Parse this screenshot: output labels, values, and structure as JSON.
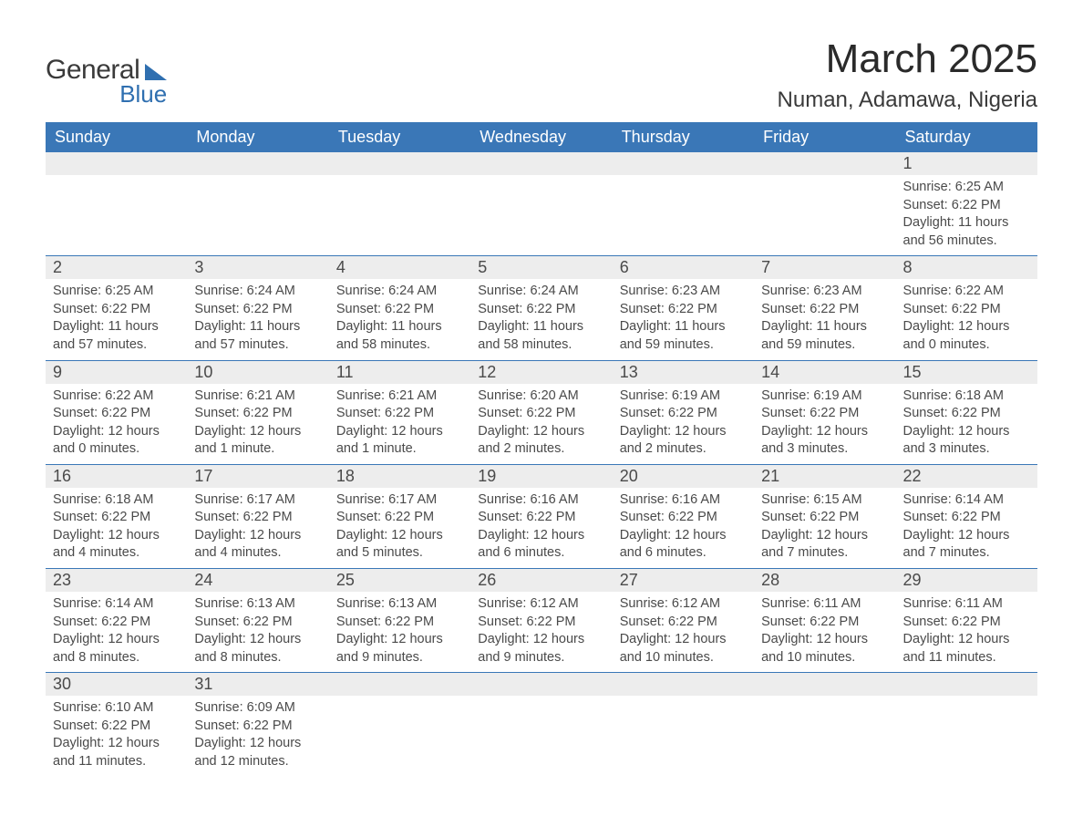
{
  "logo": {
    "word1": "General",
    "word2": "Blue"
  },
  "title": "March 2025",
  "location": "Numan, Adamawa, Nigeria",
  "colors": {
    "header_bg": "#3a77b7",
    "header_text": "#ffffff",
    "daynum_bg": "#ededed",
    "row_divider": "#3a77b7",
    "body_text": "#4a4a4a",
    "logo_accent": "#2f6fb0",
    "page_bg": "#ffffff"
  },
  "typography": {
    "title_size_pt": 33,
    "location_size_pt": 18,
    "header_size_pt": 14,
    "daynum_size_pt": 14,
    "detail_size_pt": 11
  },
  "weekdays": [
    "Sunday",
    "Monday",
    "Tuesday",
    "Wednesday",
    "Thursday",
    "Friday",
    "Saturday"
  ],
  "labels": {
    "sunrise": "Sunrise:",
    "sunset": "Sunset:",
    "daylight": "Daylight:"
  },
  "weeks": [
    [
      null,
      null,
      null,
      null,
      null,
      null,
      {
        "n": "1",
        "sunrise": "6:25 AM",
        "sunset": "6:22 PM",
        "daylight": "11 hours and 56 minutes."
      }
    ],
    [
      {
        "n": "2",
        "sunrise": "6:25 AM",
        "sunset": "6:22 PM",
        "daylight": "11 hours and 57 minutes."
      },
      {
        "n": "3",
        "sunrise": "6:24 AM",
        "sunset": "6:22 PM",
        "daylight": "11 hours and 57 minutes."
      },
      {
        "n": "4",
        "sunrise": "6:24 AM",
        "sunset": "6:22 PM",
        "daylight": "11 hours and 58 minutes."
      },
      {
        "n": "5",
        "sunrise": "6:24 AM",
        "sunset": "6:22 PM",
        "daylight": "11 hours and 58 minutes."
      },
      {
        "n": "6",
        "sunrise": "6:23 AM",
        "sunset": "6:22 PM",
        "daylight": "11 hours and 59 minutes."
      },
      {
        "n": "7",
        "sunrise": "6:23 AM",
        "sunset": "6:22 PM",
        "daylight": "11 hours and 59 minutes."
      },
      {
        "n": "8",
        "sunrise": "6:22 AM",
        "sunset": "6:22 PM",
        "daylight": "12 hours and 0 minutes."
      }
    ],
    [
      {
        "n": "9",
        "sunrise": "6:22 AM",
        "sunset": "6:22 PM",
        "daylight": "12 hours and 0 minutes."
      },
      {
        "n": "10",
        "sunrise": "6:21 AM",
        "sunset": "6:22 PM",
        "daylight": "12 hours and 1 minute."
      },
      {
        "n": "11",
        "sunrise": "6:21 AM",
        "sunset": "6:22 PM",
        "daylight": "12 hours and 1 minute."
      },
      {
        "n": "12",
        "sunrise": "6:20 AM",
        "sunset": "6:22 PM",
        "daylight": "12 hours and 2 minutes."
      },
      {
        "n": "13",
        "sunrise": "6:19 AM",
        "sunset": "6:22 PM",
        "daylight": "12 hours and 2 minutes."
      },
      {
        "n": "14",
        "sunrise": "6:19 AM",
        "sunset": "6:22 PM",
        "daylight": "12 hours and 3 minutes."
      },
      {
        "n": "15",
        "sunrise": "6:18 AM",
        "sunset": "6:22 PM",
        "daylight": "12 hours and 3 minutes."
      }
    ],
    [
      {
        "n": "16",
        "sunrise": "6:18 AM",
        "sunset": "6:22 PM",
        "daylight": "12 hours and 4 minutes."
      },
      {
        "n": "17",
        "sunrise": "6:17 AM",
        "sunset": "6:22 PM",
        "daylight": "12 hours and 4 minutes."
      },
      {
        "n": "18",
        "sunrise": "6:17 AM",
        "sunset": "6:22 PM",
        "daylight": "12 hours and 5 minutes."
      },
      {
        "n": "19",
        "sunrise": "6:16 AM",
        "sunset": "6:22 PM",
        "daylight": "12 hours and 6 minutes."
      },
      {
        "n": "20",
        "sunrise": "6:16 AM",
        "sunset": "6:22 PM",
        "daylight": "12 hours and 6 minutes."
      },
      {
        "n": "21",
        "sunrise": "6:15 AM",
        "sunset": "6:22 PM",
        "daylight": "12 hours and 7 minutes."
      },
      {
        "n": "22",
        "sunrise": "6:14 AM",
        "sunset": "6:22 PM",
        "daylight": "12 hours and 7 minutes."
      }
    ],
    [
      {
        "n": "23",
        "sunrise": "6:14 AM",
        "sunset": "6:22 PM",
        "daylight": "12 hours and 8 minutes."
      },
      {
        "n": "24",
        "sunrise": "6:13 AM",
        "sunset": "6:22 PM",
        "daylight": "12 hours and 8 minutes."
      },
      {
        "n": "25",
        "sunrise": "6:13 AM",
        "sunset": "6:22 PM",
        "daylight": "12 hours and 9 minutes."
      },
      {
        "n": "26",
        "sunrise": "6:12 AM",
        "sunset": "6:22 PM",
        "daylight": "12 hours and 9 minutes."
      },
      {
        "n": "27",
        "sunrise": "6:12 AM",
        "sunset": "6:22 PM",
        "daylight": "12 hours and 10 minutes."
      },
      {
        "n": "28",
        "sunrise": "6:11 AM",
        "sunset": "6:22 PM",
        "daylight": "12 hours and 10 minutes."
      },
      {
        "n": "29",
        "sunrise": "6:11 AM",
        "sunset": "6:22 PM",
        "daylight": "12 hours and 11 minutes."
      }
    ],
    [
      {
        "n": "30",
        "sunrise": "6:10 AM",
        "sunset": "6:22 PM",
        "daylight": "12 hours and 11 minutes."
      },
      {
        "n": "31",
        "sunrise": "6:09 AM",
        "sunset": "6:22 PM",
        "daylight": "12 hours and 12 minutes."
      },
      null,
      null,
      null,
      null,
      null
    ]
  ]
}
